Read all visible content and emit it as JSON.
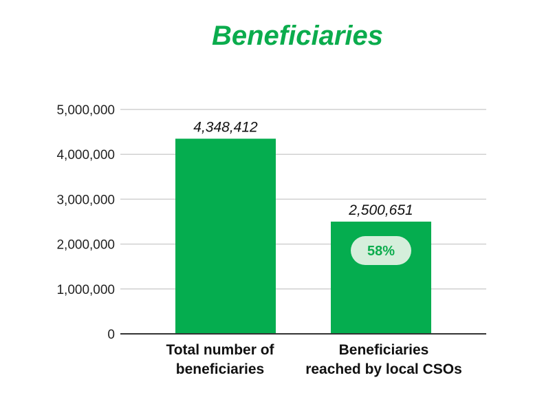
{
  "chart_data": {
    "type": "bar",
    "title": "Beneficiaries",
    "categories": [
      [
        "Total number of",
        "beneficiaries"
      ],
      [
        "Beneficiaries",
        "reached by local CSOs"
      ]
    ],
    "values": [
      4348412,
      2500651
    ],
    "value_labels": [
      "4,348,412",
      "2,500,651"
    ],
    "yticks": [
      0,
      1000000,
      2000000,
      3000000,
      4000000,
      5000000
    ],
    "ytick_labels": [
      "0",
      "1,000,000",
      "2,000,000",
      "3,000,000",
      "4,000,000",
      "5,000,000"
    ],
    "ylim": [
      0,
      5000000
    ],
    "xlabel": "",
    "ylabel": "",
    "grid": true,
    "annotations": [
      {
        "category_index": 1,
        "text": "58%"
      }
    ]
  },
  "colors": {
    "title": "#0bac4d",
    "bar": "#05ad4f",
    "grid": "#d0d0d0",
    "axis": "#333333",
    "badge_fill": "#d5eedb",
    "badge_text": "#0bac4d"
  }
}
